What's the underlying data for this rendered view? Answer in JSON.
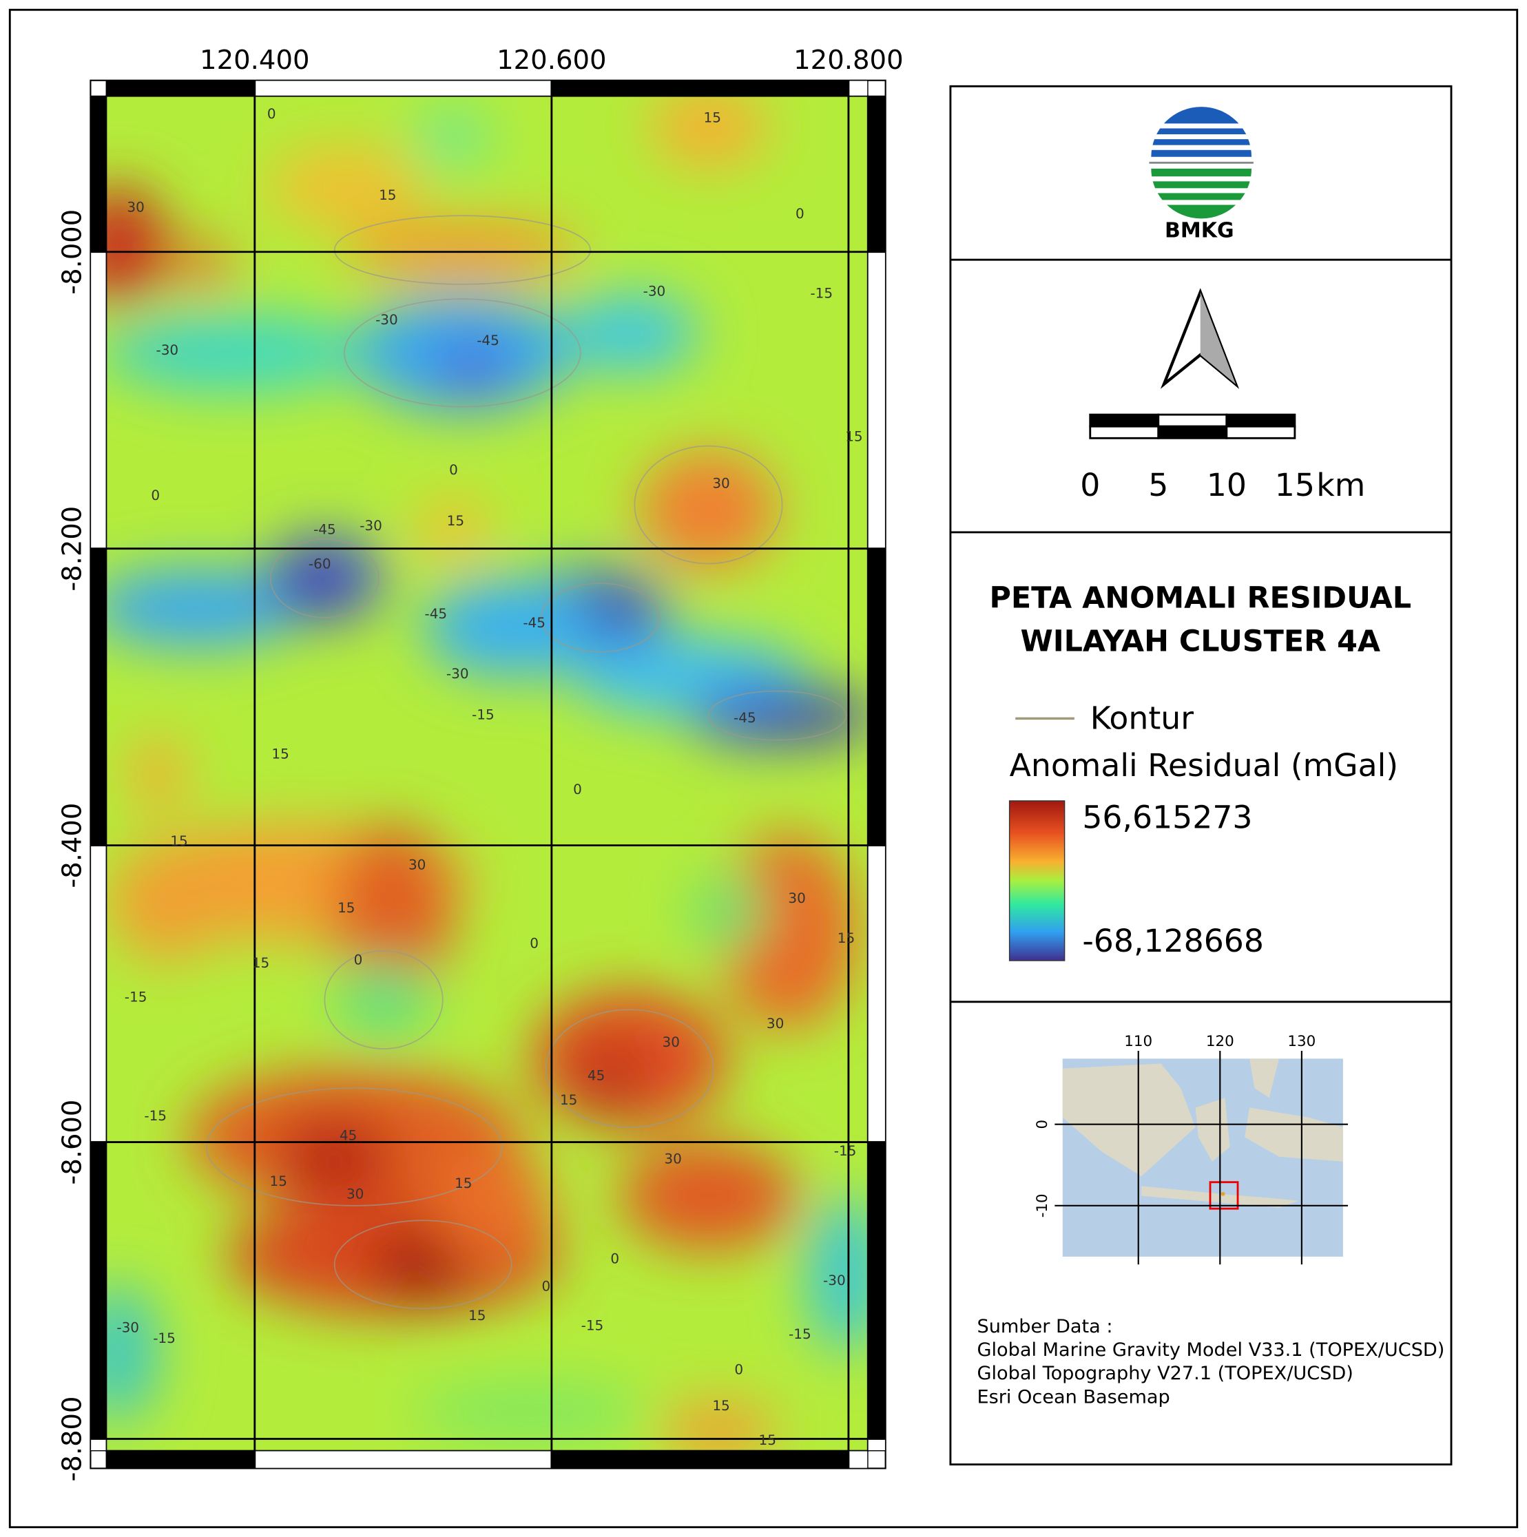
{
  "map": {
    "title_line1": "PETA ANOMALI RESIDUAL",
    "title_line2": "WILAYAH CLUSTER 4A",
    "logo_text": "BMKG",
    "xlim": [
      120.3,
      120.813
    ],
    "ylim": [
      -8.808,
      -7.895
    ],
    "xticks": [
      {
        "value": 120.4,
        "label": "120.400"
      },
      {
        "value": 120.6,
        "label": "120.600"
      },
      {
        "value": 120.8,
        "label": "120.800"
      }
    ],
    "yticks": [
      {
        "value": -8.0,
        "label": "-8.000"
      },
      {
        "value": -8.2,
        "label": "-8.200"
      },
      {
        "value": -8.4,
        "label": "-8.400"
      },
      {
        "value": -8.6,
        "label": "-8.600"
      },
      {
        "value": -8.8,
        "label": "-8.800"
      }
    ],
    "contour_labels": [
      0,
      15,
      30,
      15,
      0,
      -15,
      -30,
      -30,
      -45,
      -30,
      15,
      0,
      0,
      30,
      15,
      -45,
      -60,
      -30,
      -45,
      -45,
      -30,
      -15,
      -45,
      15,
      0,
      15,
      30,
      15,
      0,
      15,
      -15,
      0,
      30,
      15,
      30,
      45,
      30,
      15,
      -15,
      45,
      15,
      30,
      15,
      30,
      -15,
      0,
      0,
      15,
      -30,
      -15,
      -15,
      -15,
      -30,
      0,
      15,
      15
    ],
    "scale_bar": {
      "ticks": [
        0,
        5,
        10,
        15
      ],
      "unit": "km"
    },
    "legend": {
      "contour": "Kontur",
      "colorbar_title": "Anomali Residual (mGal)",
      "max": {
        "value": 56.615273,
        "label": "56,615273"
      },
      "min": {
        "value": -68.128668,
        "label": "-68,128668"
      }
    },
    "inset": {
      "xticks": [
        110,
        120,
        130
      ],
      "yticks": [
        0,
        -10
      ]
    },
    "sources": [
      "Sumber Data :",
      "Global Marine Gravity Model V33.1 (TOPEX/UCSD)",
      "Global Topography V27.1 (TOPEX/UCSD)",
      "Esri Ocean Basemap"
    ]
  }
}
